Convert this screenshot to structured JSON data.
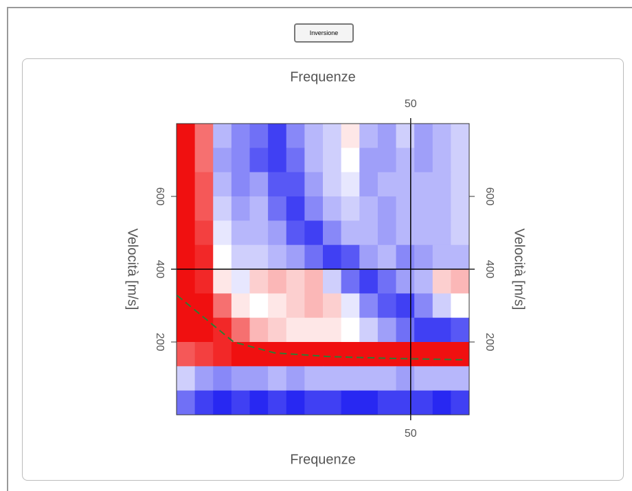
{
  "button": {
    "label": "Inversione"
  },
  "chart_data": {
    "type": "heatmap",
    "xlabel": "Frequenze",
    "ylabel": "Velocità [m/s]",
    "xlim": [
      2,
      62
    ],
    "ylim": [
      0,
      800
    ],
    "xticks": [
      50
    ],
    "yticks": [
      200,
      400,
      600
    ],
    "crosshair": {
      "x": 50,
      "y": 400
    },
    "colorscale": [
      "#1010f0",
      "#ffffff",
      "#f01010"
    ],
    "zlim": [
      -1,
      1
    ],
    "z": [
      [
        1,
        0.6,
        -0.3,
        -0.5,
        -0.6,
        -0.8,
        -0.5,
        -0.3,
        -0.2,
        0.1,
        -0.3,
        -0.4,
        -0.2,
        -0.4,
        -0.3,
        -0.2
      ],
      [
        1,
        0.6,
        -0.4,
        -0.5,
        -0.7,
        -0.8,
        -0.6,
        -0.3,
        -0.2,
        0,
        -0.4,
        -0.4,
        -0.3,
        -0.4,
        -0.3,
        -0.2
      ],
      [
        1,
        0.7,
        -0.3,
        -0.5,
        -0.4,
        -0.7,
        -0.7,
        -0.4,
        -0.2,
        -0.1,
        -0.4,
        -0.3,
        -0.3,
        -0.3,
        -0.3,
        -0.2
      ],
      [
        1,
        0.7,
        -0.2,
        -0.4,
        -0.3,
        -0.6,
        -0.8,
        -0.5,
        -0.3,
        -0.2,
        -0.3,
        -0.4,
        -0.3,
        -0.3,
        -0.3,
        -0.2
      ],
      [
        1,
        0.8,
        -0.1,
        -0.3,
        -0.3,
        -0.4,
        -0.7,
        -0.8,
        -0.5,
        -0.3,
        -0.3,
        -0.4,
        -0.3,
        -0.3,
        -0.3,
        -0.2
      ],
      [
        1,
        0.9,
        0,
        -0.2,
        -0.2,
        -0.3,
        -0.4,
        -0.6,
        -0.8,
        -0.7,
        -0.4,
        -0.3,
        -0.5,
        -0.4,
        -0.3,
        -0.3
      ],
      [
        1,
        0.9,
        0.1,
        -0.1,
        0.2,
        0.3,
        0.2,
        0.3,
        -0.2,
        -0.6,
        -0.8,
        -0.6,
        -0.4,
        -0.3,
        0.2,
        0.3
      ],
      [
        1,
        1,
        0.6,
        0.1,
        0,
        0.1,
        0.2,
        0.3,
        0.2,
        -0.1,
        -0.5,
        -0.7,
        -0.8,
        -0.5,
        -0.2,
        0
      ],
      [
        1,
        1,
        0.9,
        0.6,
        0.3,
        0.2,
        0.1,
        0.1,
        0.1,
        0,
        -0.2,
        -0.4,
        -0.6,
        -0.8,
        -0.8,
        -0.7
      ],
      [
        0.7,
        0.8,
        0.9,
        1,
        1,
        1,
        1,
        1,
        1,
        1,
        1,
        1,
        1,
        1,
        1,
        1
      ],
      [
        -0.2,
        -0.4,
        -0.5,
        -0.4,
        -0.4,
        -0.3,
        -0.4,
        -0.3,
        -0.3,
        -0.3,
        -0.3,
        -0.3,
        -0.4,
        -0.3,
        -0.3,
        -0.3
      ],
      [
        -0.6,
        -0.8,
        -0.9,
        -0.8,
        -0.9,
        -0.8,
        -0.9,
        -0.8,
        -0.8,
        -0.9,
        -0.9,
        -0.8,
        -0.8,
        -0.8,
        -0.9,
        -0.8
      ]
    ],
    "curve": {
      "color": "#2e7d32",
      "x": [
        2.1,
        8.1,
        13.7,
        22.1,
        33.2,
        45.8,
        61.1
      ],
      "y": [
        328,
        262,
        200,
        170,
        160,
        155,
        151
      ]
    }
  }
}
